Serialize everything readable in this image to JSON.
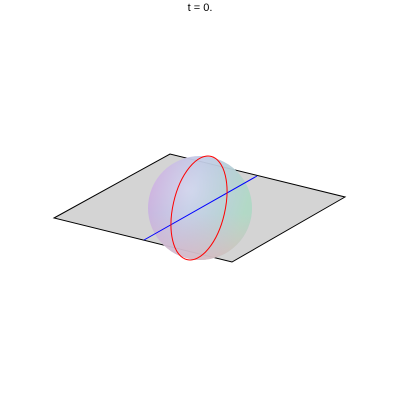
{
  "title": "t = 0.",
  "colors": {
    "background": "#ffffff",
    "plane_fill": "#d4d4d4",
    "plane_edge": "#000000",
    "great_circle": "#ff0000",
    "axis_line": "#0000ff",
    "sphere_tint_left": "#d98fd9",
    "sphere_tint_right": "#a8e6b8"
  }
}
